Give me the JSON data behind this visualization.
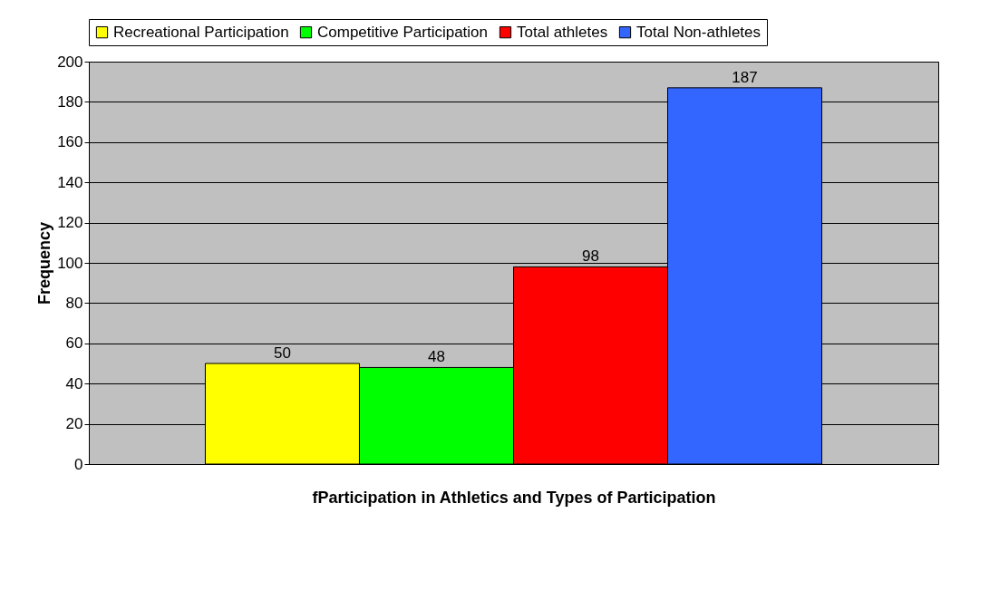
{
  "chart_data": {
    "type": "bar",
    "xlabel": "fParticipation in Athletics and Types of Participation",
    "ylabel": "Frequency",
    "categories": [
      null
    ],
    "series": [
      {
        "name": "Recreational Participation",
        "color": "#ffff00",
        "values": [
          50
        ]
      },
      {
        "name": "Competitive Participation",
        "color": "#00ff00",
        "values": [
          48
        ]
      },
      {
        "name": "Total athletes",
        "color": "#ff0000",
        "values": [
          98
        ]
      },
      {
        "name": "Total Non-athletes",
        "color": "#3366ff",
        "values": [
          187
        ]
      }
    ],
    "ylim": [
      0,
      200
    ],
    "yticks": [
      0,
      20,
      40,
      60,
      80,
      100,
      120,
      140,
      160,
      180,
      200
    ],
    "grid": "y",
    "legend": "top",
    "data_labels": true,
    "tick_labels": "y"
  }
}
